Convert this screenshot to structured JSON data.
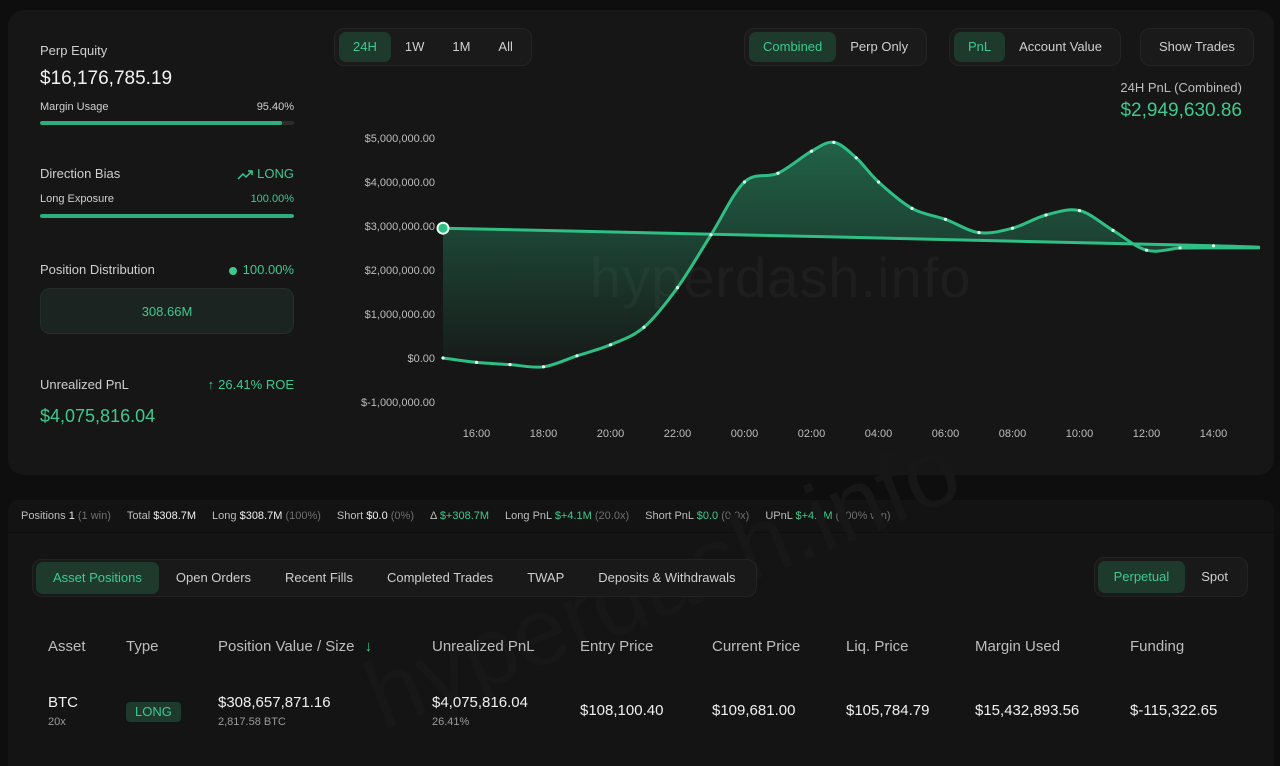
{
  "equity": {
    "title": "Perp Equity",
    "value": "$16,176,785.19",
    "margin_label": "Margin Usage",
    "margin_value": "95.40%",
    "margin_fraction": 0.954
  },
  "bias": {
    "title": "Direction Bias",
    "direction": "LONG",
    "exposure_label": "Long Exposure",
    "exposure_value": "100.00%",
    "exposure_fraction": 1.0
  },
  "distribution": {
    "title": "Position Distribution",
    "value": "100.00%",
    "box_value": "308.66M"
  },
  "unrealized": {
    "title": "Unrealized PnL",
    "roe": "26.41% ROE",
    "value": "$4,075,816.04"
  },
  "timeframes": [
    "24H",
    "1W",
    "1M",
    "All"
  ],
  "mode_options": [
    "Combined",
    "Perp Only"
  ],
  "metric_options": [
    "PnL",
    "Account Value"
  ],
  "show_trades": "Show Trades",
  "pnl_header": {
    "label": "24H PnL (Combined)",
    "value": "$2,949,630.86"
  },
  "watermark": "hyperdash.info",
  "chart_data": {
    "type": "area",
    "x": [
      "15:00",
      "16:00",
      "17:00",
      "18:00",
      "19:00",
      "20:00",
      "21:00",
      "22:00",
      "23:00",
      "00:00",
      "01:00",
      "02:00",
      "02:40",
      "03:20",
      "04:00",
      "05:00",
      "06:00",
      "07:00",
      "08:00",
      "09:00",
      "10:00",
      "11:00",
      "12:00",
      "13:00",
      "14:00",
      "15:00"
    ],
    "values": [
      0,
      -100000,
      -150000,
      -200000,
      50000,
      300000,
      700000,
      1600000,
      2800000,
      4000000,
      4200000,
      4700000,
      4900000,
      4550000,
      4000000,
      3400000,
      3150000,
      2850000,
      2950000,
      3250000,
      3350000,
      2900000,
      2450000,
      2500000,
      2550000,
      2950000
    ],
    "xticks": [
      "16:00",
      "18:00",
      "20:00",
      "22:00",
      "00:00",
      "02:00",
      "04:00",
      "06:00",
      "08:00",
      "10:00",
      "12:00",
      "14:00"
    ],
    "yticks": [
      "$5,000,000.00",
      "$4,000,000.00",
      "$3,000,000.00",
      "$2,000,000.00",
      "$1,000,000.00",
      "$0.00",
      "$-1,000,000.00"
    ],
    "ylim": [
      -1000000,
      5000000
    ],
    "grid": false,
    "color": "#2fbf85"
  },
  "stats": {
    "positions_label": "Positions",
    "positions_value": "1",
    "positions_note": "(1 win)",
    "total_label": "Total",
    "total_value": "$308.7M",
    "long_label": "Long",
    "long_value": "$308.7M",
    "long_note": "(100%)",
    "short_label": "Short",
    "short_value": "$0.0",
    "short_note": "(0%)",
    "delta_label": "Δ",
    "delta_value": "$+308.7M",
    "longpnl_label": "Long PnL",
    "longpnl_value": "$+4.1M",
    "longpnl_note": "(20.0x)",
    "shortpnl_label": "Short PnL",
    "shortpnl_value": "$0.0",
    "shortpnl_note": "(0.0x)",
    "upnl_label": "UPnL",
    "upnl_value": "$+4.1M",
    "upnl_note": "(100% win)"
  },
  "tabs": [
    "Asset Positions",
    "Open Orders",
    "Recent Fills",
    "Completed Trades",
    "TWAP",
    "Deposits & Withdrawals"
  ],
  "market_tabs": [
    "Perpetual",
    "Spot"
  ],
  "table": {
    "headers": [
      "Asset",
      "Type",
      "Position Value / Size",
      "Unrealized PnL",
      "Entry Price",
      "Current Price",
      "Liq. Price",
      "Margin Used",
      "Funding"
    ],
    "row": {
      "asset": "BTC",
      "leverage": "20x",
      "type": "LONG",
      "value": "$308,657,871.16",
      "size": "2,817.58 BTC",
      "upnl": "$4,075,816.04",
      "upnl_pct": "26.41%",
      "entry": "$108,100.40",
      "current": "$109,681.00",
      "liq": "$105,784.79",
      "margin": "$15,432,893.56",
      "funding": "$-115,322.65"
    }
  }
}
